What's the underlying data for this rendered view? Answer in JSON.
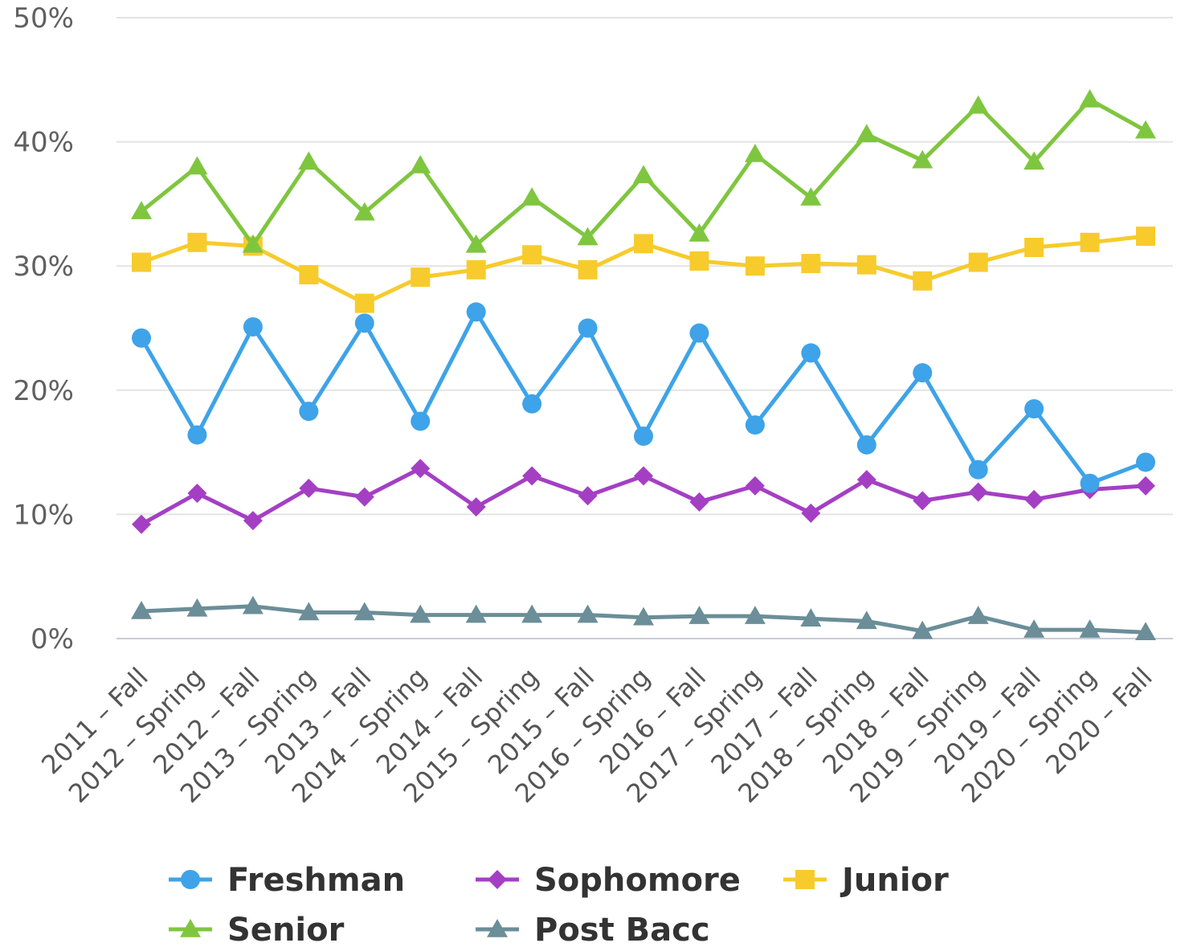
{
  "chart_data": {
    "type": "line",
    "title": "",
    "xlabel": "",
    "ylabel": "",
    "ylim": [
      0,
      50
    ],
    "yticks": [
      "0%",
      "10%",
      "20%",
      "30%",
      "40%",
      "50%"
    ],
    "grid": true,
    "legend_position": "bottom",
    "categories": [
      "2011 – Fall",
      "2012 – Spring",
      "2012 – Fall",
      "2013 – Spring",
      "2013 – Fall",
      "2014 – Spring",
      "2014 – Fall",
      "2015 – Spring",
      "2015 – Fall",
      "2016 – Spring",
      "2016 – Fall",
      "2017 – Spring",
      "2017 – Fall",
      "2018 – Spring",
      "2018 – Fall",
      "2019 – Spring",
      "2019 – Fall",
      "2020 – Spring",
      "2020 – Fall"
    ],
    "series": [
      {
        "name": "Freshman",
        "color": "#3ea3e8",
        "marker": "circle",
        "values": [
          24.2,
          16.4,
          25.1,
          18.3,
          25.4,
          17.5,
          26.3,
          18.9,
          25.0,
          16.3,
          24.6,
          17.2,
          23.0,
          15.6,
          21.4,
          13.6,
          18.5,
          12.5,
          14.2
        ]
      },
      {
        "name": "Sophomore",
        "color": "#a43fc4",
        "marker": "diamond",
        "values": [
          9.2,
          11.7,
          9.5,
          12.1,
          11.4,
          13.7,
          10.6,
          13.1,
          11.5,
          13.1,
          11.0,
          12.3,
          10.1,
          12.8,
          11.1,
          11.8,
          11.2,
          12.0,
          12.3
        ]
      },
      {
        "name": "Junior",
        "color": "#f7cb2c",
        "marker": "square",
        "values": [
          30.3,
          31.9,
          31.6,
          29.3,
          27.0,
          29.1,
          29.7,
          30.9,
          29.7,
          31.8,
          30.4,
          30.0,
          30.2,
          30.1,
          28.8,
          30.3,
          31.5,
          31.9,
          32.4
        ]
      },
      {
        "name": "Senior",
        "color": "#7fc63f",
        "marker": "triangle",
        "values": [
          34.4,
          38.0,
          31.7,
          38.4,
          34.3,
          38.1,
          31.7,
          35.5,
          32.3,
          37.3,
          32.6,
          39.0,
          35.5,
          40.6,
          38.5,
          42.9,
          38.4,
          43.4,
          40.9
        ]
      },
      {
        "name": "Post Bacc",
        "color": "#6b8e98",
        "marker": "triangle",
        "values": [
          2.2,
          2.4,
          2.6,
          2.1,
          2.1,
          1.9,
          1.9,
          1.9,
          1.9,
          1.7,
          1.8,
          1.8,
          1.6,
          1.4,
          0.6,
          1.8,
          0.7,
          0.7,
          0.5
        ]
      }
    ]
  }
}
